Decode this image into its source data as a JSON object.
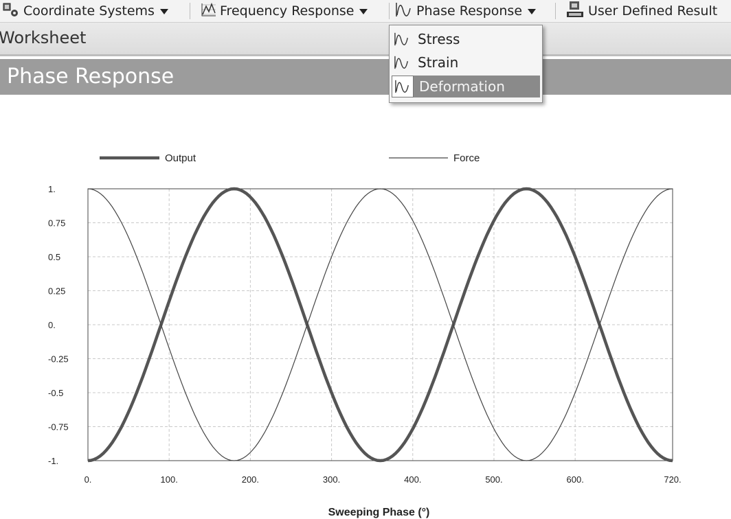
{
  "toolbar": {
    "coordinate_systems": "Coordinate Systems",
    "frequency_response": "Frequency Response",
    "phase_response": "Phase Response",
    "user_defined_result": "User Defined Result",
    "icons": [
      "coordinate-systems-icon",
      "frequency-response-icon",
      "phase-response-icon",
      "user-defined-result-icon"
    ]
  },
  "worksheet": {
    "title": "Worksheet"
  },
  "phase_header": {
    "title": "Phase Response"
  },
  "dropdown": {
    "items": [
      {
        "label": "Stress",
        "icon": "phase-response-icon"
      },
      {
        "label": "Strain",
        "icon": "phase-response-icon"
      },
      {
        "label": "Deformation",
        "icon": "phase-response-icon",
        "selected": true
      }
    ]
  },
  "colors": {
    "header_bg": "#9c9c9c",
    "selected_item_bg": "#8a8a8a",
    "output_line": "#555555",
    "force_line": "#444444",
    "grid": "#c8c8c8"
  },
  "chart_data": {
    "type": "line",
    "xlabel": "Sweeping Phase (°)",
    "ylabel": "",
    "xlim": [
      0,
      720
    ],
    "ylim": [
      -1,
      1
    ],
    "grid": true,
    "legend_position": "top",
    "x_ticks": [
      0,
      100,
      200,
      300,
      400,
      500,
      600,
      720
    ],
    "x_tick_labels": [
      "0.",
      "100.",
      "200.",
      "300.",
      "400.",
      "500.",
      "600.",
      "720."
    ],
    "y_ticks": [
      1,
      0.75,
      0.5,
      0.25,
      0,
      -0.25,
      -0.5,
      -0.75,
      -1
    ],
    "y_tick_labels": [
      "1.",
      "0.75",
      "0.5",
      "0.25",
      "0.",
      "-0.25",
      "-0.5",
      "-0.75",
      "-1."
    ],
    "x": [
      0,
      45,
      90,
      135,
      180,
      225,
      270,
      315,
      360,
      405,
      450,
      495,
      540,
      585,
      630,
      675,
      720
    ],
    "series": [
      {
        "name": "Output",
        "values": [
          -1,
          -0.71,
          0,
          0.71,
          1,
          0.71,
          0,
          -0.71,
          -1,
          -0.71,
          0,
          0.71,
          1,
          0.71,
          0,
          -0.71,
          -1
        ]
      },
      {
        "name": "Force",
        "values": [
          1,
          0.71,
          0,
          -0.71,
          -1,
          -0.71,
          0,
          0.71,
          1,
          0.71,
          0,
          -0.71,
          -1,
          -0.71,
          0,
          0.71,
          1
        ]
      }
    ]
  }
}
